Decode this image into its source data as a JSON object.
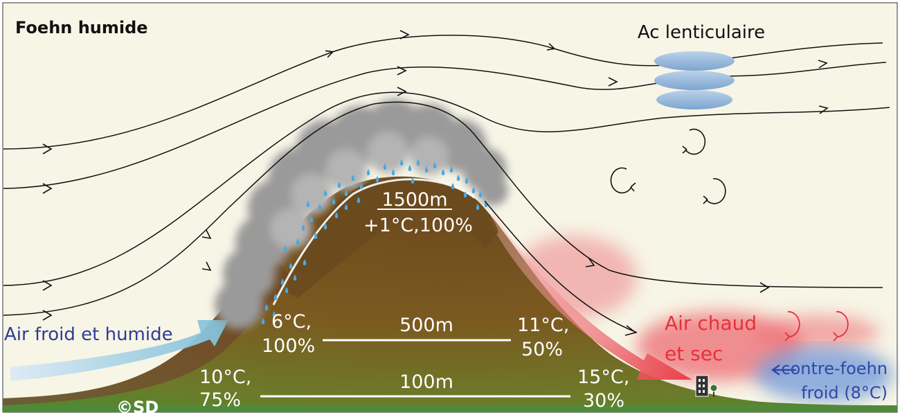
{
  "title": "Foehn humide",
  "copyright": "©SD",
  "labels": {
    "lenticular": "Ac lenticulaire",
    "cold_humid_air": "Air froid et humide",
    "warm_dry_air_1": "Air chaud",
    "warm_dry_air_2": "et sec",
    "counter_foehn_1": "contre-foehn",
    "counter_foehn_2": "froid (8°C)"
  },
  "summit": {
    "altitude": "1500m",
    "conditions": "+1°C,100%"
  },
  "levels": [
    {
      "altitude": "500m",
      "windward_temp": "6°C,",
      "windward_humidity": "100%",
      "leeward_temp": "11°C,",
      "leeward_humidity": "50%"
    },
    {
      "altitude": "100m",
      "windward_temp": "10°C,",
      "windward_humidity": "75%",
      "leeward_temp": "15°C,",
      "leeward_humidity": "30%"
    }
  ],
  "colors": {
    "sky": "#f7f5e6",
    "mountain": "#7a5a22",
    "cloud": "#9c9c9c",
    "rain": "#4aa9e0",
    "cold_arrow": "#9ec6e3",
    "warm_air": "#e8404a",
    "counter_foehn": "#2f48a8",
    "lenticular": "#8fb4da"
  }
}
